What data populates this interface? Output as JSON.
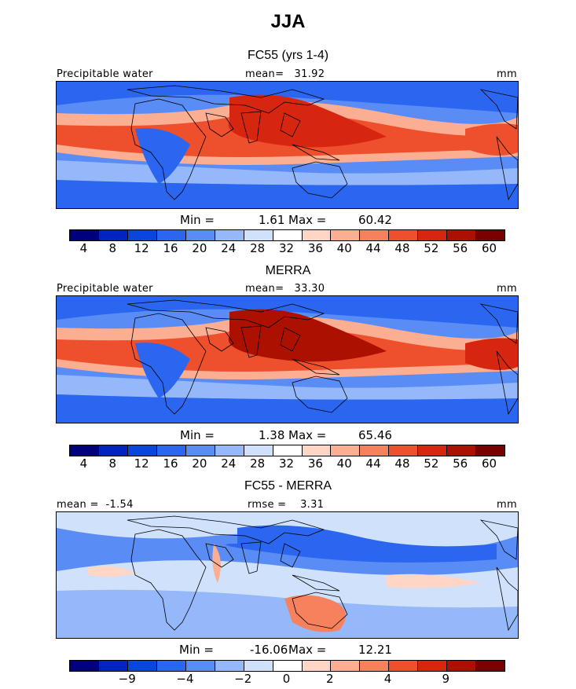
{
  "title": "JJA",
  "colors": [
    "#00007f",
    "#0024c0",
    "#0a45dc",
    "#2a66f0",
    "#5a8cf6",
    "#95b8fa",
    "#cfe1fb",
    "#ffffff",
    "#ffd5c6",
    "#fcae92",
    "#f7815c",
    "#ee4f2c",
    "#d62610",
    "#ab1000",
    "#7a0000"
  ],
  "panels": [
    {
      "title": "FC55 (yrs 1-4)",
      "left_label": "Precipitable water",
      "center_label": "mean=   31.92",
      "right_label": "mm",
      "min_label": "Min =",
      "min_value": "1.61",
      "max_label": "Max =",
      "max_value": "60.42",
      "ticks": [
        "4",
        "8",
        "12",
        "16",
        "20",
        "24",
        "28",
        "32",
        "36",
        "40",
        "44",
        "48",
        "52",
        "56",
        "60"
      ],
      "field": "wet"
    },
    {
      "title": "MERRA",
      "left_label": "Precipitable water",
      "center_label": "mean=   33.30",
      "right_label": "mm",
      "min_label": "Min =",
      "min_value": "1.38",
      "max_label": "Max =",
      "max_value": "65.46",
      "ticks": [
        "4",
        "8",
        "12",
        "16",
        "20",
        "24",
        "28",
        "32",
        "36",
        "40",
        "44",
        "48",
        "52",
        "56",
        "60"
      ],
      "field": "wetter"
    },
    {
      "title": "FC55 - MERRA",
      "left_label": "mean =  -1.54",
      "center_label": "rmse =    3.31",
      "right_label": "mm",
      "min_label": "Min =",
      "min_value": "-16.06",
      "max_label": "Max =",
      "max_value": "12.21",
      "ticks": [
        "-9",
        "-4",
        "-2",
        "0",
        "2",
        "4",
        "9"
      ],
      "field": "diff"
    }
  ]
}
